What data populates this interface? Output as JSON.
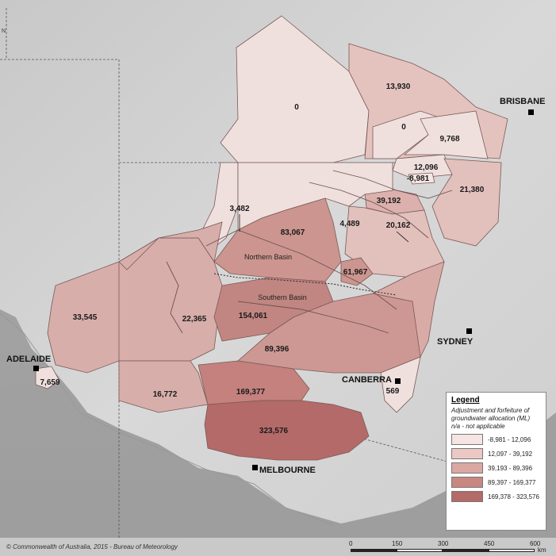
{
  "cities": {
    "brisbane": "BRISBANE",
    "sydney": "SYDNEY",
    "canberra": "CANBERRA",
    "adelaide": "ADELAIDE",
    "melbourne": "MELBOURNE"
  },
  "basins": {
    "northern": "Northern Basin",
    "southern": "Southern Basin"
  },
  "regions": [
    {
      "id": "r0a",
      "value": "0",
      "class": 1
    },
    {
      "id": "r13930",
      "value": "13,930",
      "class": 2
    },
    {
      "id": "r0b",
      "value": "0",
      "class": 1
    },
    {
      "id": "r9768",
      "value": "9,768",
      "class": 1
    },
    {
      "id": "r12096",
      "value": "12,096",
      "class": 1
    },
    {
      "id": "r8981",
      "value": "-8,981",
      "class": 1
    },
    {
      "id": "r21380",
      "value": "21,380",
      "class": 2
    },
    {
      "id": "r39192",
      "value": "39,192",
      "class": 2
    },
    {
      "id": "r3482",
      "value": "3,482",
      "class": 1
    },
    {
      "id": "r4489",
      "value": "4,489",
      "class": 1
    },
    {
      "id": "r20162",
      "value": "20,162",
      "class": 2
    },
    {
      "id": "r83067",
      "value": "83,067",
      "class": 3
    },
    {
      "id": "r61967",
      "value": "61,967",
      "class": 3
    },
    {
      "id": "r33545",
      "value": "33,545",
      "class": 2
    },
    {
      "id": "r22365",
      "value": "22,365",
      "class": 2
    },
    {
      "id": "r154061",
      "value": "154,061",
      "class": 4
    },
    {
      "id": "r89396",
      "value": "89,396",
      "class": 3
    },
    {
      "id": "r7659",
      "value": "7,659",
      "class": 1
    },
    {
      "id": "r16772",
      "value": "16,772",
      "class": 2
    },
    {
      "id": "r169377",
      "value": "169,377",
      "class": 4
    },
    {
      "id": "r569",
      "value": "569",
      "class": 1
    },
    {
      "id": "r323576",
      "value": "323,576",
      "class": 5
    }
  ],
  "legend": {
    "title": "Legend",
    "subtitle": "Adjustment and forfeiture of groundwater allocation (ML)",
    "note": "n/a - not applicable",
    "classes": [
      {
        "range": "-8,981 - 12,096",
        "color": "#f6e4e2"
      },
      {
        "range": "12,097 - 39,192",
        "color": "#ecc8c4"
      },
      {
        "range": "39,193 - 89,396",
        "color": "#dba7a2"
      },
      {
        "range": "89,397 - 169,377",
        "color": "#c88781"
      },
      {
        "range": "169,378 - 323,576",
        "color": "#b36a68"
      }
    ]
  },
  "credit": "© Commonwealth of Australia, 2015 - Bureau of Meteorology",
  "scale": {
    "ticks": [
      "0",
      "150",
      "300",
      "450",
      "600"
    ],
    "unit": "km"
  },
  "north": "N"
}
